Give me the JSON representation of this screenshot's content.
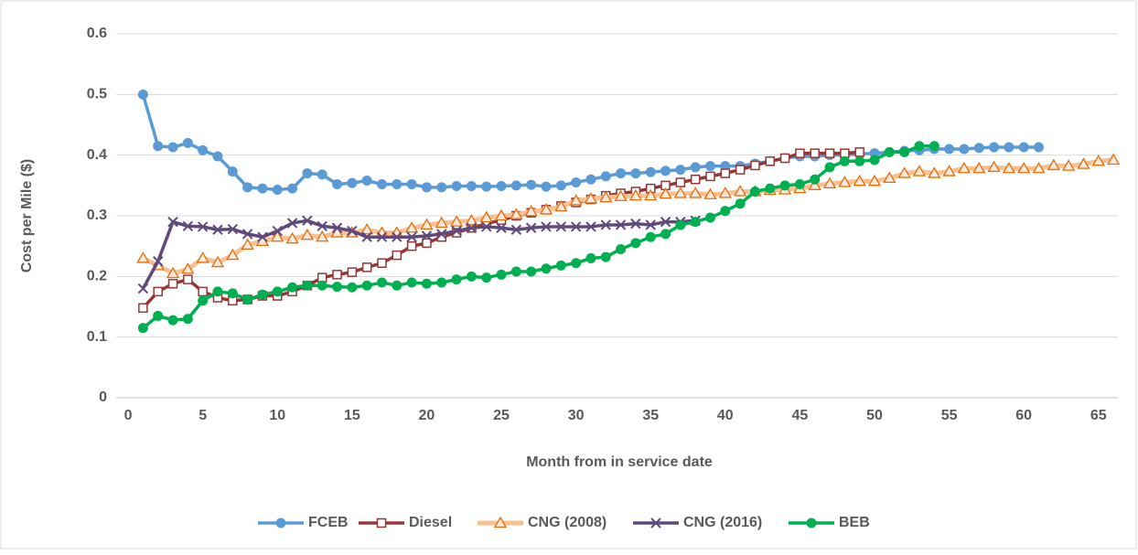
{
  "chart_data": {
    "type": "line",
    "xlabel": "Month from in service date",
    "ylabel": "Cost per Mile ($)",
    "x": [
      1,
      2,
      3,
      4,
      5,
      6,
      7,
      8,
      9,
      10,
      11,
      12,
      13,
      14,
      15,
      16,
      17,
      18,
      19,
      20,
      21,
      22,
      23,
      24,
      25,
      26,
      27,
      28,
      29,
      30,
      31,
      32,
      33,
      34,
      35,
      36,
      37,
      38,
      39,
      40,
      41,
      42,
      43,
      44,
      45,
      46,
      47,
      48,
      49,
      50,
      51,
      52,
      53,
      54,
      55,
      56,
      57,
      58,
      59,
      60,
      61,
      62,
      63,
      64,
      65,
      66
    ],
    "series": [
      {
        "name": "FCEB",
        "color": "#5b9bd5",
        "marker": "circle",
        "values": [
          0.5,
          0.415,
          0.413,
          0.42,
          0.408,
          0.398,
          0.373,
          0.347,
          0.345,
          0.343,
          0.345,
          0.37,
          0.368,
          0.352,
          0.354,
          0.358,
          0.352,
          0.352,
          0.352,
          0.347,
          0.347,
          0.349,
          0.349,
          0.348,
          0.349,
          0.35,
          0.351,
          0.348,
          0.35,
          0.355,
          0.36,
          0.365,
          0.37,
          0.37,
          0.372,
          0.374,
          0.376,
          0.38,
          0.382,
          0.382,
          0.382,
          0.386,
          0.39,
          0.395,
          0.398,
          0.398,
          0.4,
          0.4,
          0.402,
          0.403,
          0.405,
          0.407,
          0.408,
          0.41,
          0.41,
          0.41,
          0.412,
          0.413,
          0.413,
          0.413,
          0.413,
          null,
          null,
          null,
          null,
          null
        ]
      },
      {
        "name": "Diesel",
        "color": "#953735",
        "marker": "square",
        "values": [
          0.148,
          0.175,
          0.188,
          0.195,
          0.175,
          0.165,
          0.16,
          0.162,
          0.168,
          0.168,
          0.175,
          0.185,
          0.198,
          0.203,
          0.207,
          0.215,
          0.222,
          0.235,
          0.25,
          0.255,
          0.265,
          0.272,
          0.28,
          0.287,
          0.293,
          0.3,
          0.305,
          0.31,
          0.316,
          0.322,
          0.327,
          0.333,
          0.337,
          0.34,
          0.345,
          0.35,
          0.355,
          0.36,
          0.365,
          0.37,
          0.376,
          0.383,
          0.39,
          0.395,
          0.403,
          0.403,
          0.403,
          0.403,
          0.405,
          null,
          null,
          null,
          null,
          null,
          null,
          null,
          null,
          null,
          null,
          null,
          null,
          null,
          null,
          null,
          null,
          null
        ]
      },
      {
        "name": "CNG (2008)",
        "color": "#fac090",
        "marker": "triangle",
        "values": [
          0.23,
          0.218,
          0.205,
          0.212,
          0.23,
          0.223,
          0.235,
          0.252,
          0.258,
          0.265,
          0.262,
          0.268,
          0.265,
          0.272,
          0.272,
          0.277,
          0.272,
          0.272,
          0.28,
          0.285,
          0.288,
          0.29,
          0.292,
          0.297,
          0.3,
          0.302,
          0.307,
          0.31,
          0.315,
          0.325,
          0.328,
          0.33,
          0.332,
          0.333,
          0.333,
          0.336,
          0.337,
          0.337,
          0.335,
          0.337,
          0.34,
          0.34,
          0.342,
          0.343,
          0.345,
          0.35,
          0.353,
          0.355,
          0.357,
          0.357,
          0.362,
          0.37,
          0.373,
          0.37,
          0.373,
          0.378,
          0.378,
          0.38,
          0.378,
          0.378,
          0.378,
          0.383,
          0.382,
          0.385,
          0.39,
          0.392
        ]
      },
      {
        "name": "CNG (2016)",
        "color": "#604a7b",
        "marker": "x",
        "values": [
          0.18,
          0.225,
          0.29,
          0.283,
          0.282,
          0.277,
          0.278,
          0.27,
          0.265,
          0.275,
          0.288,
          0.292,
          0.283,
          0.28,
          0.275,
          0.265,
          0.265,
          0.265,
          0.265,
          0.267,
          0.27,
          0.275,
          0.28,
          0.282,
          0.28,
          0.277,
          0.28,
          0.282,
          0.282,
          0.282,
          0.282,
          0.285,
          0.285,
          0.287,
          0.285,
          0.29,
          0.29,
          0.292,
          null,
          null,
          null,
          null,
          null,
          null,
          null,
          null,
          null,
          null,
          null,
          null,
          null,
          null,
          null,
          null,
          null,
          null,
          null,
          null,
          null,
          null,
          null,
          null,
          null,
          null,
          null,
          null
        ]
      },
      {
        "name": "BEB",
        "color": "#00b050",
        "marker": "circle",
        "values": [
          0.115,
          0.135,
          0.128,
          0.13,
          0.16,
          0.175,
          0.172,
          0.162,
          0.17,
          0.175,
          0.182,
          0.185,
          0.185,
          0.183,
          0.182,
          0.185,
          0.19,
          0.185,
          0.19,
          0.188,
          0.19,
          0.195,
          0.2,
          0.198,
          0.203,
          0.208,
          0.208,
          0.213,
          0.218,
          0.222,
          0.23,
          0.232,
          0.245,
          0.255,
          0.265,
          0.27,
          0.285,
          0.29,
          0.297,
          0.308,
          0.32,
          0.34,
          0.345,
          0.35,
          0.352,
          0.36,
          0.38,
          0.39,
          0.39,
          0.392,
          0.405,
          0.405,
          0.415,
          0.415,
          null,
          null,
          null,
          null,
          null,
          null,
          null,
          null,
          null,
          null,
          null,
          null
        ]
      }
    ],
    "xlim": [
      -0.8,
      66.3
    ],
    "xticks": [
      0,
      5,
      10,
      15,
      20,
      25,
      30,
      35,
      40,
      45,
      50,
      55,
      60,
      65
    ],
    "ylim": [
      0,
      0.6
    ],
    "yticks": [
      0,
      0.1,
      0.2,
      0.3,
      0.4,
      0.5,
      0.6
    ],
    "grid": true,
    "legend": "bottom"
  }
}
